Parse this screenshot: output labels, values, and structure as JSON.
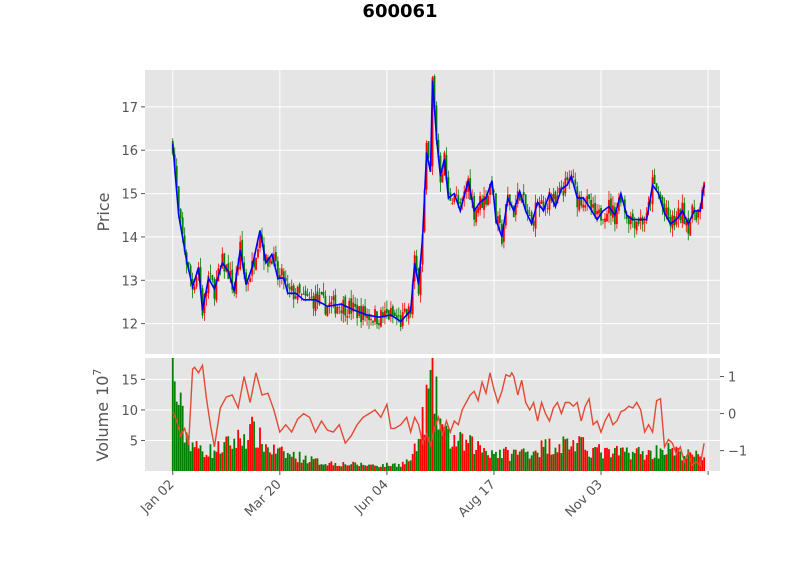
{
  "chart_data": {
    "type": "candlestick",
    "title": "600061",
    "colors": {
      "up": "#ff0000",
      "down": "#008000",
      "ma_line": "#0000ff",
      "secondary_line": "#e24a33",
      "panel_bg": "#e5e5e5",
      "grid": "#ffffff"
    },
    "price_panel": {
      "ylabel": "Price",
      "ylim": [
        11.3,
        17.85
      ],
      "yticks": [
        12,
        13,
        14,
        15,
        16,
        17
      ],
      "trend_points": [
        [
          0,
          16.15
        ],
        [
          3,
          14.5
        ],
        [
          7,
          13.45
        ],
        [
          10,
          12.85
        ],
        [
          13,
          13.3
        ],
        [
          15,
          12.3
        ],
        [
          18,
          13.05
        ],
        [
          21,
          12.8
        ],
        [
          25,
          13.4
        ],
        [
          28,
          13.2
        ],
        [
          31,
          12.75
        ],
        [
          34,
          13.7
        ],
        [
          37,
          12.9
        ],
        [
          40,
          13.3
        ],
        [
          44,
          14.15
        ],
        [
          47,
          13.4
        ],
        [
          50,
          13.6
        ],
        [
          53,
          13.05
        ],
        [
          56,
          13.05
        ],
        [
          58,
          12.7
        ],
        [
          62,
          12.7
        ],
        [
          66,
          12.55
        ],
        [
          72,
          12.55
        ],
        [
          78,
          12.4
        ],
        [
          85,
          12.45
        ],
        [
          92,
          12.3
        ],
        [
          98,
          12.2
        ],
        [
          104,
          12.15
        ],
        [
          110,
          12.2
        ],
        [
          115,
          12.05
        ],
        [
          120,
          12.3
        ],
        [
          122,
          13.4
        ],
        [
          124,
          12.9
        ],
        [
          126,
          14.0
        ],
        [
          128,
          15.95
        ],
        [
          130,
          15.5
        ],
        [
          131,
          17.6
        ],
        [
          133,
          16.3
        ],
        [
          135,
          15.4
        ],
        [
          137,
          15.8
        ],
        [
          139,
          14.9
        ],
        [
          142,
          15.0
        ],
        [
          145,
          14.6
        ],
        [
          149,
          15.3
        ],
        [
          152,
          14.6
        ],
        [
          155,
          14.8
        ],
        [
          158,
          14.9
        ],
        [
          161,
          15.3
        ],
        [
          163,
          14.4
        ],
        [
          166,
          14.0
        ],
        [
          169,
          14.9
        ],
        [
          172,
          14.6
        ],
        [
          175,
          15.05
        ],
        [
          178,
          14.6
        ],
        [
          181,
          14.3
        ],
        [
          184,
          14.8
        ],
        [
          187,
          14.6
        ],
        [
          190,
          15.0
        ],
        [
          193,
          14.7
        ],
        [
          196,
          15.1
        ],
        [
          199,
          15.2
        ],
        [
          201,
          15.4
        ],
        [
          204,
          14.9
        ],
        [
          207,
          14.9
        ],
        [
          210,
          14.7
        ],
        [
          214,
          14.4
        ],
        [
          217,
          14.6
        ],
        [
          220,
          14.7
        ],
        [
          223,
          14.5
        ],
        [
          226,
          15.0
        ],
        [
          229,
          14.5
        ],
        [
          232,
          14.4
        ],
        [
          236,
          14.4
        ],
        [
          239,
          14.4
        ],
        [
          242,
          15.2
        ],
        [
          245,
          15.0
        ],
        [
          248,
          14.55
        ],
        [
          251,
          14.3
        ],
        [
          254,
          14.4
        ],
        [
          257,
          14.6
        ],
        [
          260,
          14.3
        ],
        [
          263,
          14.6
        ],
        [
          266,
          14.6
        ],
        [
          268,
          15.2
        ]
      ]
    },
    "volume_panel": {
      "ylabel": "Volume",
      "ylabel_exponent": "10",
      "ylabel_exponent_power": "7",
      "units": "10^7 shares",
      "yticks_left": [
        5,
        10,
        15
      ],
      "ylim_left": [
        0,
        18.5
      ],
      "yticks_right": [
        1,
        0,
        -1
      ],
      "ylim_right": [
        -1.55,
        1.5
      ],
      "volume_profile": [
        [
          0,
          17
        ],
        [
          6,
          7
        ],
        [
          12,
          4
        ],
        [
          20,
          3.5
        ],
        [
          30,
          5
        ],
        [
          40,
          7
        ],
        [
          48,
          4
        ],
        [
          56,
          3
        ],
        [
          64,
          2.5
        ],
        [
          75,
          1.5
        ],
        [
          90,
          1.2
        ],
        [
          105,
          1
        ],
        [
          115,
          1.2
        ],
        [
          120,
          2
        ],
        [
          124,
          5
        ],
        [
          128,
          12
        ],
        [
          131,
          16
        ],
        [
          134,
          10
        ],
        [
          138,
          6
        ],
        [
          145,
          5
        ],
        [
          152,
          4.5
        ],
        [
          160,
          3.5
        ],
        [
          170,
          3
        ],
        [
          180,
          3.5
        ],
        [
          190,
          4.5
        ],
        [
          200,
          5
        ],
        [
          210,
          4
        ],
        [
          220,
          3
        ],
        [
          230,
          3.5
        ],
        [
          240,
          3
        ],
        [
          248,
          4
        ],
        [
          256,
          3
        ],
        [
          268,
          2.5
        ]
      ],
      "secondary_line": [
        [
          0,
          0.05
        ],
        [
          2,
          -0.2
        ],
        [
          4,
          -0.6
        ],
        [
          6,
          -0.4
        ],
        [
          8,
          -0.85
        ],
        [
          10,
          1.2
        ],
        [
          11,
          1.25
        ],
        [
          13,
          1.1
        ],
        [
          15,
          1.3
        ],
        [
          17,
          0.4
        ],
        [
          19,
          -0.3
        ],
        [
          21,
          -0.9
        ],
        [
          24,
          0.15
        ],
        [
          27,
          0.45
        ],
        [
          30,
          0.5
        ],
        [
          33,
          0.15
        ],
        [
          36,
          1.0
        ],
        [
          39,
          0.3
        ],
        [
          42,
          1.1
        ],
        [
          45,
          0.5
        ],
        [
          48,
          0.55
        ],
        [
          51,
          0.1
        ],
        [
          54,
          -0.5
        ],
        [
          57,
          -0.3
        ],
        [
          60,
          -0.5
        ],
        [
          63,
          -0.15
        ],
        [
          66,
          0.0
        ],
        [
          69,
          -0.1
        ],
        [
          72,
          -0.5
        ],
        [
          75,
          -0.2
        ],
        [
          78,
          -0.45
        ],
        [
          81,
          -0.5
        ],
        [
          84,
          -0.3
        ],
        [
          87,
          -0.8
        ],
        [
          90,
          -0.6
        ],
        [
          93,
          -0.3
        ],
        [
          96,
          -0.1
        ],
        [
          99,
          0.0
        ],
        [
          102,
          0.1
        ],
        [
          105,
          -0.1
        ],
        [
          108,
          0.25
        ],
        [
          110,
          -0.4
        ],
        [
          112,
          -0.4
        ],
        [
          115,
          -0.3
        ],
        [
          118,
          -0.1
        ],
        [
          120,
          -0.5
        ],
        [
          122,
          -0.1
        ],
        [
          124,
          -0.3
        ],
        [
          126,
          -0.8
        ],
        [
          128,
          -0.55
        ],
        [
          130,
          -0.85
        ],
        [
          132,
          -0.4
        ],
        [
          134,
          -0.1
        ],
        [
          136,
          -0.6
        ],
        [
          138,
          -0.2
        ],
        [
          140,
          -0.5
        ],
        [
          142,
          -0.2
        ],
        [
          144,
          -0.3
        ],
        [
          146,
          0.1
        ],
        [
          148,
          0.3
        ],
        [
          150,
          0.5
        ],
        [
          152,
          0.6
        ],
        [
          154,
          0.35
        ],
        [
          156,
          0.85
        ],
        [
          158,
          0.55
        ],
        [
          160,
          1.1
        ],
        [
          162,
          0.65
        ],
        [
          164,
          0.3
        ],
        [
          166,
          0.6
        ],
        [
          168,
          1.05
        ],
        [
          170,
          1.0
        ],
        [
          171,
          1.1
        ],
        [
          172,
          1.0
        ],
        [
          174,
          0.5
        ],
        [
          176,
          0.9
        ],
        [
          178,
          0.3
        ],
        [
          180,
          0.1
        ],
        [
          182,
          0.3
        ],
        [
          184,
          -0.2
        ],
        [
          186,
          0.3
        ],
        [
          188,
          0.0
        ],
        [
          190,
          -0.2
        ],
        [
          192,
          0.15
        ],
        [
          194,
          0.3
        ],
        [
          196,
          0.0
        ],
        [
          198,
          0.3
        ],
        [
          200,
          0.3
        ],
        [
          202,
          0.2
        ],
        [
          204,
          0.3
        ],
        [
          206,
          -0.2
        ],
        [
          208,
          0.2
        ],
        [
          210,
          0.4
        ],
        [
          212,
          -0.3
        ],
        [
          214,
          -0.2
        ],
        [
          216,
          -0.5
        ],
        [
          218,
          -0.2
        ],
        [
          220,
          0.0
        ],
        [
          222,
          -0.3
        ],
        [
          224,
          -0.2
        ],
        [
          226,
          0.05
        ],
        [
          228,
          0.1
        ],
        [
          230,
          0.2
        ],
        [
          232,
          0.15
        ],
        [
          234,
          0.3
        ],
        [
          236,
          0.1
        ],
        [
          238,
          -0.5
        ],
        [
          240,
          -0.3
        ],
        [
          242,
          -0.5
        ],
        [
          244,
          0.35
        ],
        [
          246,
          0.4
        ],
        [
          248,
          -0.9
        ],
        [
          250,
          -0.7
        ],
        [
          252,
          -0.8
        ],
        [
          254,
          -1.1
        ],
        [
          256,
          -0.9
        ],
        [
          258,
          -1.3
        ],
        [
          260,
          -1.05
        ],
        [
          262,
          -1.4
        ],
        [
          264,
          -1.3
        ],
        [
          266,
          -1.4
        ],
        [
          268,
          -0.8
        ]
      ]
    },
    "x_axis": {
      "n_bars": 269,
      "tick_labels": [
        "Jan 02",
        "Mar 20",
        "Jun 04",
        "Aug 17",
        "Nov 03"
      ],
      "tick_indices": [
        0,
        54,
        108,
        162,
        216,
        270
      ],
      "xlim": [
        -14,
        276
      ]
    }
  }
}
